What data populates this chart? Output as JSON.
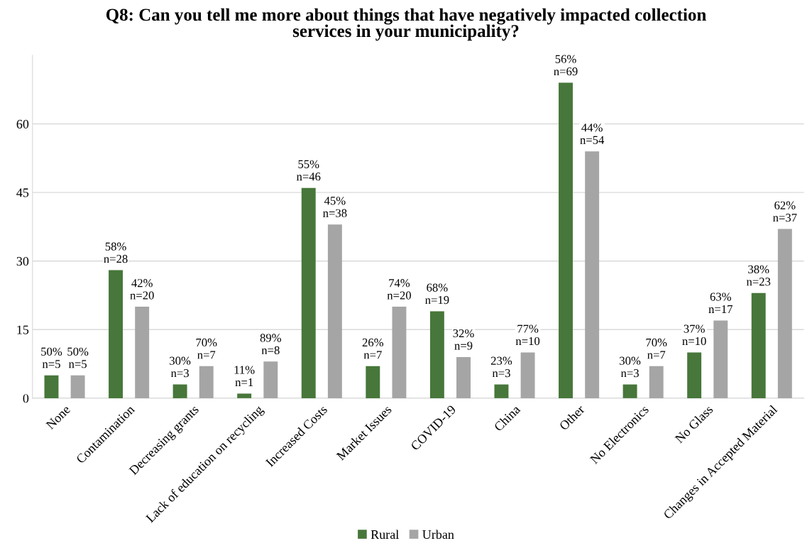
{
  "chart_data": {
    "type": "bar",
    "title": "Q8: Can you tell me more about things that have negatively impacted collection\nservices in your municipality?",
    "categories": [
      "None",
      "Contamination",
      "Decreasing grants",
      "Lack of education on recycling",
      "Increased Costs",
      "Market Issues",
      "COVID-19",
      "China",
      "Other",
      "No Electronics",
      "No Glass",
      "Changes in Accepted Material"
    ],
    "series": [
      {
        "name": "Rural",
        "color": "#47773a",
        "values": [
          5,
          28,
          3,
          1,
          46,
          7,
          19,
          3,
          69,
          3,
          10,
          23
        ],
        "value_labels": [
          "50%\nn=5",
          "58%\nn=28",
          "30%\nn=3",
          "11%\nn=1",
          "55%\nn=46",
          "26%\nn=7",
          "68%\nn=19",
          "23%\nn=3",
          "56%\nn=69",
          "30%\nn=3",
          "37%\nn=10",
          "38%\nn=23"
        ]
      },
      {
        "name": "Urban",
        "color": "#a5a5a5",
        "values": [
          5,
          20,
          7,
          8,
          38,
          20,
          9,
          10,
          54,
          7,
          17,
          37
        ],
        "value_labels": [
          "50%\nn=5",
          "42%\nn=20",
          "70%\nn=7",
          "89%\nn=8",
          "45%\nn=38",
          "74%\nn=20",
          "32%\nn=9",
          "77%\nn=10",
          "44%\nn=54",
          "70%\nn=7",
          "63%\nn=17",
          "62%\nn=37"
        ]
      }
    ],
    "ylim": [
      0,
      75
    ],
    "yticks": [
      0,
      15,
      30,
      45,
      60
    ],
    "grid": "y",
    "legend": "bottom"
  }
}
